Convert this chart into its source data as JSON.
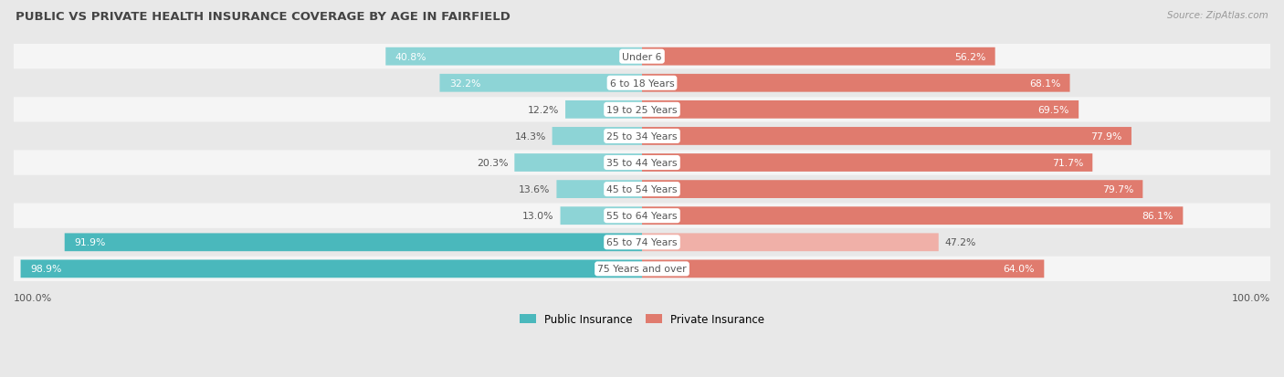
{
  "title": "PUBLIC VS PRIVATE HEALTH INSURANCE COVERAGE BY AGE IN FAIRFIELD",
  "source": "Source: ZipAtlas.com",
  "categories": [
    "Under 6",
    "6 to 18 Years",
    "19 to 25 Years",
    "25 to 34 Years",
    "35 to 44 Years",
    "45 to 54 Years",
    "55 to 64 Years",
    "65 to 74 Years",
    "75 Years and over"
  ],
  "public_values": [
    40.8,
    32.2,
    12.2,
    14.3,
    20.3,
    13.6,
    13.0,
    91.9,
    98.9
  ],
  "private_values": [
    56.2,
    68.1,
    69.5,
    77.9,
    71.7,
    79.7,
    86.1,
    47.2,
    64.0
  ],
  "public_color_dark": "#4ab8bc",
  "public_color_light": "#8dd4d6",
  "private_color_dark": "#e07b6e",
  "private_color_light": "#f0b0a8",
  "bg_color": "#e8e8e8",
  "row_bg_white": "#f5f5f5",
  "row_bg_gray": "#e8e8e8",
  "label_dark": "#555555",
  "label_white": "#ffffff",
  "title_color": "#444444",
  "source_color": "#999999",
  "legend_public": "Public Insurance",
  "legend_private": "Private Insurance",
  "x_label": "100.0%",
  "max_val": 100.0,
  "pub_threshold": 50.0,
  "priv_threshold": 50.0,
  "pub_label_inside_threshold": 30.0,
  "priv_label_inside_threshold": 55.0
}
